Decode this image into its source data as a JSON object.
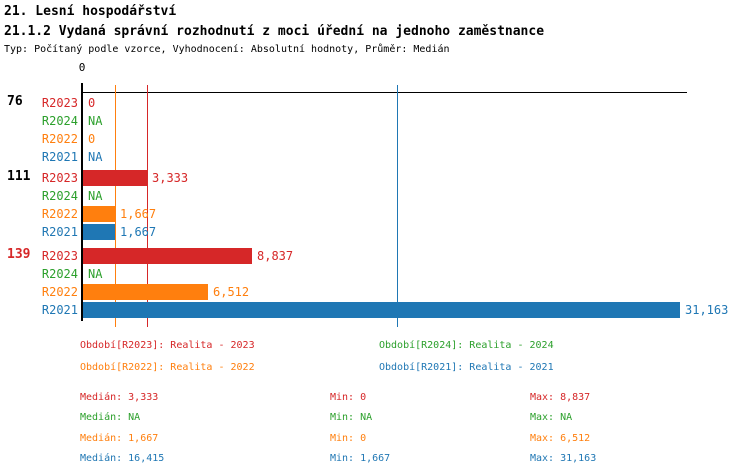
{
  "header": {
    "title": "21. Lesní hospodářství",
    "subtitle": "21.1.2 Vydaná správní rozhodnutí z moci úřední na jednoho zaměstnance",
    "meta": "Typ: Počítaný podle vzorce, Vyhodnocení: Absolutní hodnoty, Průměr: Medián"
  },
  "colors": {
    "R2023": "#d62728",
    "R2024": "#2ca02c",
    "R2022": "#ff7f0e",
    "R2021": "#1f77b4",
    "axis": "#000000",
    "highlight_label": "#d62728"
  },
  "chart_data": {
    "type": "bar",
    "orientation": "horizontal",
    "title": "21.1.2 Vydaná správní rozhodnutí z moci úřední na jednoho zaměstnance",
    "axis_tick_label": "0",
    "xlim": [
      0,
      31600
    ],
    "grid": false,
    "series_names": [
      "R2023",
      "R2024",
      "R2022",
      "R2021"
    ],
    "groups": [
      {
        "label": "76",
        "highlight": false,
        "bars": [
          {
            "series": "R2023",
            "value": 0,
            "display": "0"
          },
          {
            "series": "R2024",
            "value": null,
            "display": "NA"
          },
          {
            "series": "R2022",
            "value": 0,
            "display": "0"
          },
          {
            "series": "R2021",
            "value": null,
            "display": "NA"
          }
        ]
      },
      {
        "label": "111",
        "highlight": false,
        "bars": [
          {
            "series": "R2023",
            "value": 3333,
            "display": "3,333"
          },
          {
            "series": "R2024",
            "value": null,
            "display": "NA"
          },
          {
            "series": "R2022",
            "value": 1667,
            "display": "1,667"
          },
          {
            "series": "R2021",
            "value": 1667,
            "display": "1,667"
          }
        ]
      },
      {
        "label": "139",
        "highlight": true,
        "bars": [
          {
            "series": "R2023",
            "value": 8837,
            "display": "8,837"
          },
          {
            "series": "R2024",
            "value": null,
            "display": "NA"
          },
          {
            "series": "R2022",
            "value": 6512,
            "display": "6,512"
          },
          {
            "series": "R2021",
            "value": 31163,
            "display": "31,163"
          }
        ]
      }
    ],
    "median_lines": [
      {
        "series": "R2022",
        "value": 1667
      },
      {
        "series": "R2023",
        "value": 3333
      },
      {
        "series": "R2021",
        "value": 16415
      }
    ]
  },
  "legend": [
    {
      "series": "R2023",
      "text": "Období[R2023]: Realita - 2023",
      "row": 0,
      "col": 0
    },
    {
      "series": "R2024",
      "text": "Období[R2024]: Realita - 2024",
      "row": 0,
      "col": 1
    },
    {
      "series": "R2022",
      "text": "Období[R2022]: Realita - 2022",
      "row": 1,
      "col": 0
    },
    {
      "series": "R2021",
      "text": "Období[R2021]: Realita - 2021",
      "row": 1,
      "col": 1
    }
  ],
  "stats": [
    {
      "series": "R2023",
      "median": "Medián: 3,333",
      "min": "Min: 0",
      "max": "Max: 8,837"
    },
    {
      "series": "R2024",
      "median": "Medián: NA",
      "min": "Min: NA",
      "max": "Max: NA"
    },
    {
      "series": "R2022",
      "median": "Medián: 1,667",
      "min": "Min: 0",
      "max": "Max: 6,512"
    },
    {
      "series": "R2021",
      "median": "Medián: 16,415",
      "min": "Min: 1,667",
      "max": "Max: 31,163"
    }
  ]
}
